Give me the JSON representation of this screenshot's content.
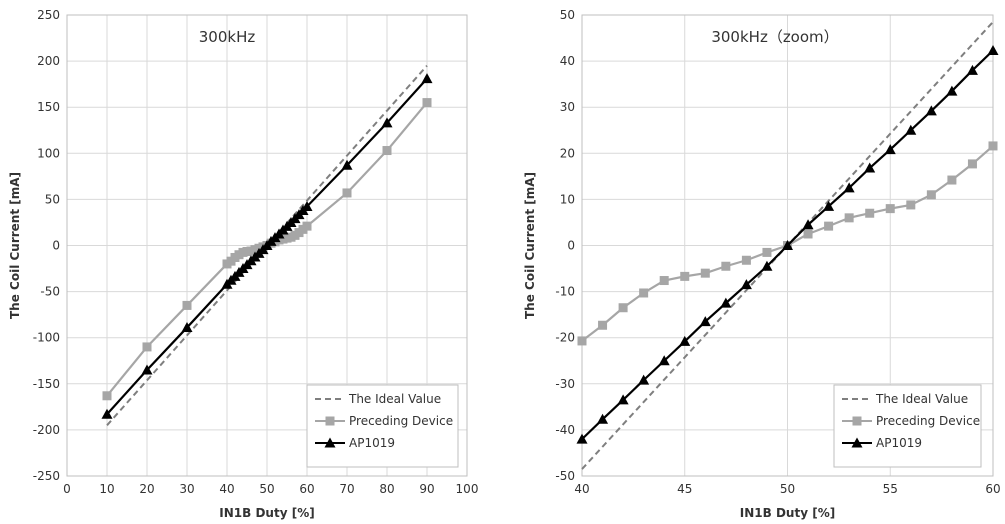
{
  "chart_data": [
    {
      "type": "line",
      "title": "300kHz",
      "xlabel": "IN1B Duty [%]",
      "ylabel": "The Coil Current [mA]",
      "xlim": [
        0,
        100
      ],
      "ylim": [
        -250,
        250
      ],
      "xticks": [
        0,
        10,
        20,
        30,
        40,
        50,
        60,
        70,
        80,
        90,
        100
      ],
      "yticks": [
        -250,
        -200,
        -150,
        -100,
        -50,
        0,
        50,
        100,
        150,
        200,
        250
      ],
      "xtick_labels": [
        "0",
        "10",
        "20",
        "30",
        "40",
        "50",
        "60",
        "70",
        "80",
        "90",
        "100"
      ],
      "ytick_labels": [
        "-250",
        "-200",
        "-150",
        "-100",
        "-50",
        "0",
        "50",
        "100",
        "150",
        "200",
        "250"
      ],
      "grid": true,
      "legend_position": "bottom-right",
      "series": [
        {
          "name": "The Ideal Value",
          "style": "dashed",
          "color": "#7f7f7f",
          "marker": "none",
          "x": [
            10,
            90
          ],
          "y": [
            -195,
            195
          ]
        },
        {
          "name": "Preceding Device",
          "style": "solid",
          "color": "#a6a6a6",
          "marker": "square",
          "x": [
            10,
            20,
            30,
            40,
            41,
            42,
            43,
            44,
            45,
            46,
            47,
            48,
            49,
            50,
            51,
            52,
            53,
            54,
            55,
            56,
            57,
            58,
            59,
            60,
            70,
            80,
            90
          ],
          "y": [
            -163,
            -110,
            -65,
            -20,
            -17,
            -13,
            -10,
            -7.5,
            -6.5,
            -6,
            -4.5,
            -3,
            -1.5,
            0,
            2.5,
            4,
            6,
            7,
            8,
            9,
            11,
            14,
            17.5,
            21,
            57,
            103,
            155
          ]
        },
        {
          "name": "AP1019",
          "style": "solid",
          "color": "#000000",
          "marker": "triangle",
          "x": [
            10,
            20,
            30,
            40,
            41,
            42,
            43,
            44,
            45,
            46,
            47,
            48,
            49,
            50,
            51,
            52,
            53,
            54,
            55,
            56,
            57,
            58,
            59,
            60,
            70,
            80,
            90
          ],
          "y": [
            -183,
            -135,
            -89,
            -42,
            -37.7,
            -33.5,
            -29.2,
            -25,
            -20.8,
            -16.5,
            -12.5,
            -8.5,
            -4.5,
            0,
            4.5,
            8.5,
            12.5,
            16.8,
            20.8,
            25,
            29.2,
            33.5,
            38,
            42.3,
            87,
            133,
            181
          ]
        }
      ]
    },
    {
      "type": "line",
      "title": "300kHz（zoom）",
      "xlabel": "IN1B Duty [%]",
      "ylabel": "The Coil Current [mA]",
      "xlim": [
        40,
        60
      ],
      "ylim": [
        -50,
        50
      ],
      "xticks": [
        40,
        45,
        50,
        55,
        60
      ],
      "yticks": [
        -50,
        -40,
        -30,
        -20,
        -10,
        0,
        10,
        20,
        30,
        40,
        50
      ],
      "xtick_labels": [
        "40",
        "45",
        "50",
        "55",
        "60"
      ],
      "ytick_labels": [
        "-50",
        "-40",
        "-30",
        "-20",
        "-10",
        "0",
        "10",
        "20",
        "30",
        "40",
        "50"
      ],
      "grid": true,
      "legend_position": "bottom-right",
      "series": [
        {
          "name": "The Ideal Value",
          "style": "dashed",
          "color": "#7f7f7f",
          "marker": "none",
          "x": [
            40,
            60
          ],
          "y": [
            -48.5,
            48.5
          ]
        },
        {
          "name": "Preceding Device",
          "style": "solid",
          "color": "#a6a6a6",
          "marker": "square",
          "x": [
            40,
            41,
            42,
            43,
            44,
            45,
            46,
            47,
            48,
            49,
            50,
            51,
            52,
            53,
            54,
            55,
            56,
            57,
            58,
            59,
            60
          ],
          "y": [
            -20.7,
            -17.3,
            -13.5,
            -10.3,
            -7.6,
            -6.7,
            -6,
            -4.5,
            -3.2,
            -1.5,
            0,
            2.5,
            4.2,
            6,
            7,
            8,
            8.8,
            11,
            14.2,
            17.7,
            21.6
          ]
        },
        {
          "name": "AP1019",
          "style": "solid",
          "color": "#000000",
          "marker": "triangle",
          "x": [
            40,
            41,
            42,
            43,
            44,
            45,
            46,
            47,
            48,
            49,
            50,
            51,
            52,
            53,
            54,
            55,
            56,
            57,
            58,
            59,
            60
          ],
          "y": [
            -42,
            -37.7,
            -33.5,
            -29.2,
            -25,
            -20.8,
            -16.5,
            -12.5,
            -8.5,
            -4.5,
            0,
            4.5,
            8.5,
            12.5,
            16.8,
            20.8,
            25,
            29.2,
            33.5,
            38,
            42.3
          ]
        }
      ]
    }
  ]
}
